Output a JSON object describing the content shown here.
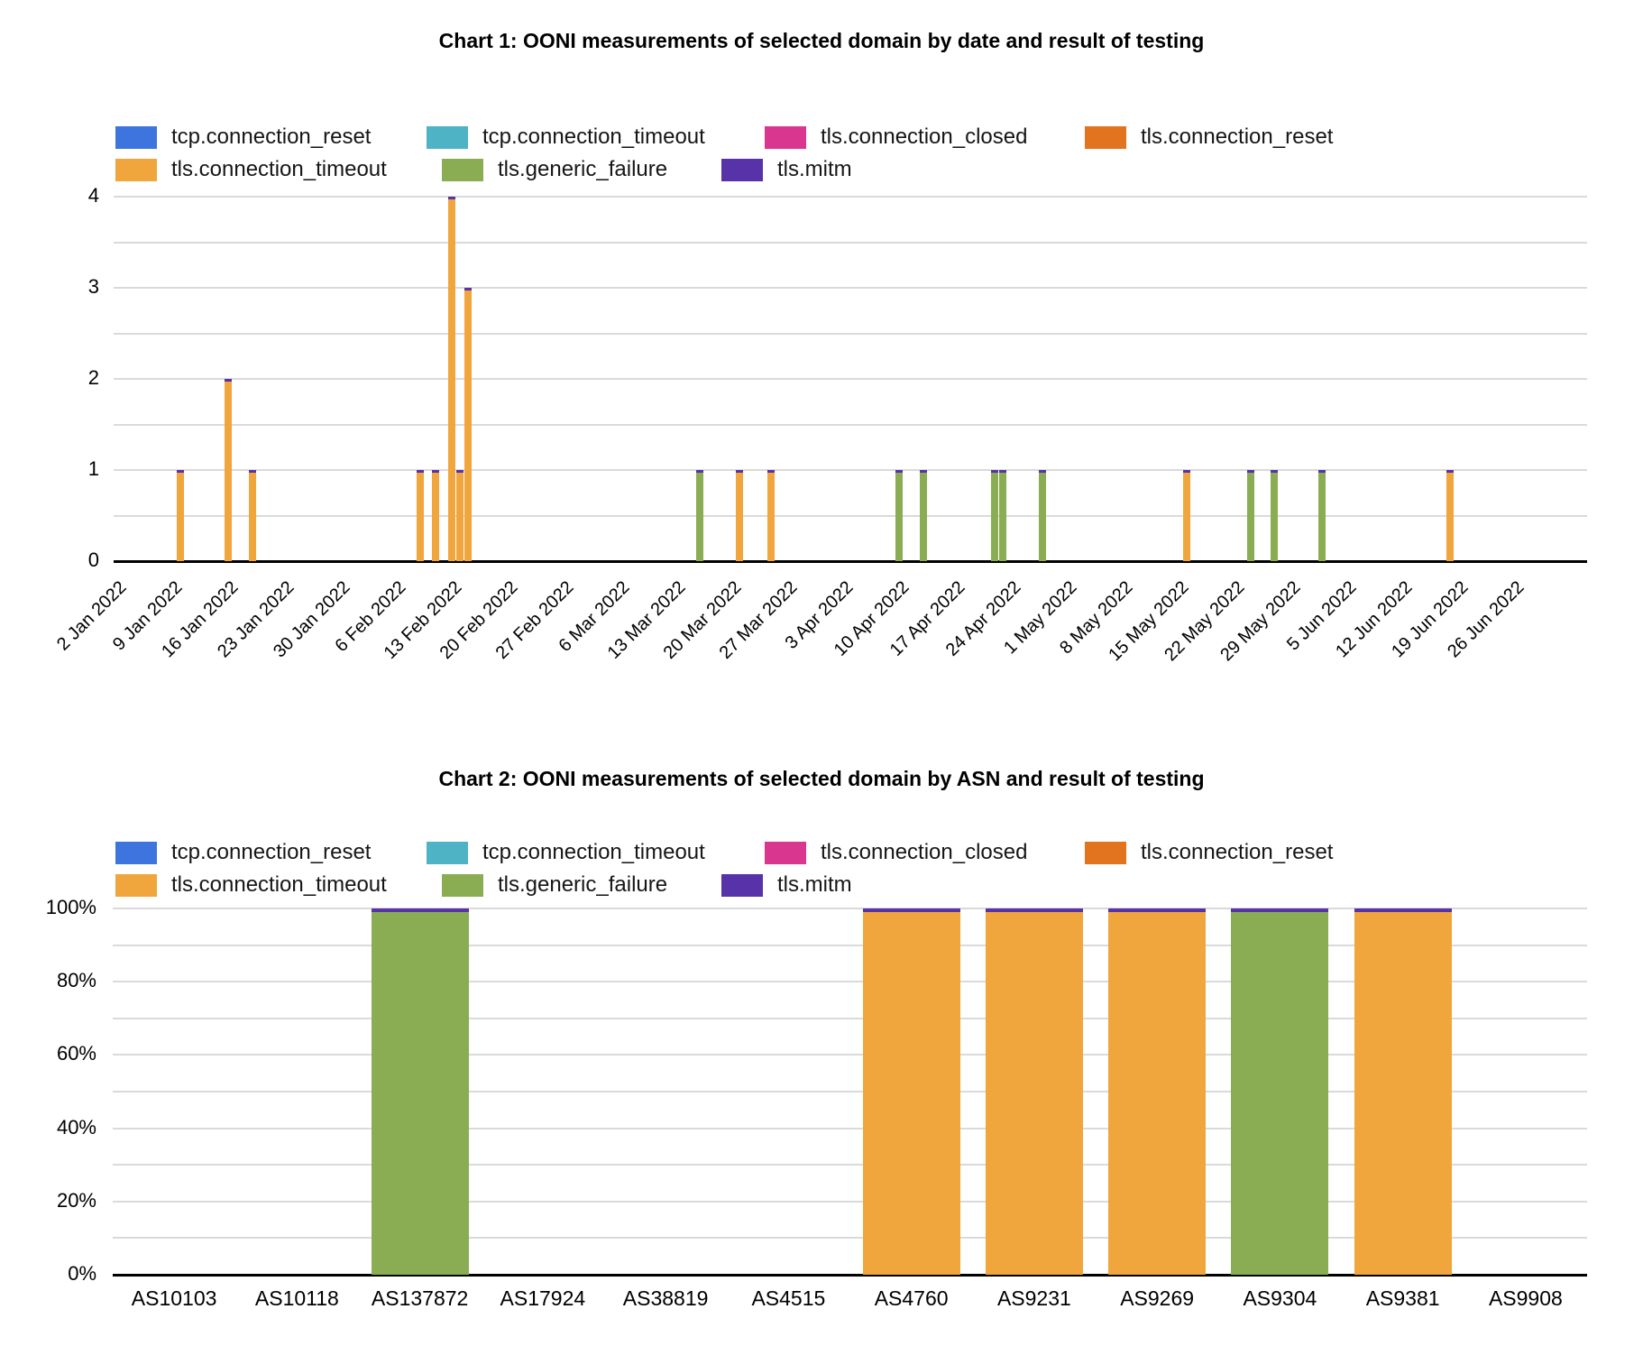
{
  "page": {
    "background": "#ffffff"
  },
  "series_colors": {
    "tcp.connection_reset": "#3d74de",
    "tcp.connection_timeout": "#4eb3c4",
    "tls.connection_closed": "#d9368f",
    "tls.connection_reset": "#e2731f",
    "tls.connection_timeout": "#f0a63c",
    "tls.generic_failure": "#8aad53",
    "tls.mitm": "#5732a8"
  },
  "legend": {
    "rows": [
      [
        "tcp.connection_reset",
        "tcp.connection_timeout",
        "tls.connection_closed",
        "tls.connection_reset"
      ],
      [
        "tls.connection_timeout",
        "tls.generic_failure",
        "tls.mitm"
      ]
    ]
  },
  "chart_data": [
    {
      "type": "bar",
      "title": "Chart 1: OONI measurements of selected domain by date and result of testing",
      "stacked": true,
      "grid": true,
      "legend_position": "top",
      "xlabel": "",
      "ylabel": "",
      "ylim": [
        0,
        4
      ],
      "y_tick_labels": [
        "0",
        "1",
        "2",
        "3",
        "4"
      ],
      "x_axis_type": "date-weekly",
      "x_tick_labels": [
        "2 Jan 2022",
        "9 Jan 2022",
        "16 Jan 2022",
        "23 Jan 2022",
        "30 Jan 2022",
        "6 Feb 2022",
        "13 Feb 2022",
        "20 Feb 2022",
        "27 Feb 2022",
        "6 Mar 2022",
        "13 Mar 2022",
        "20 Mar 2022",
        "27 Mar 2022",
        "3 Apr 2022",
        "10 Apr 2022",
        "17 Apr 2022",
        "24 Apr 2022",
        "1 May 2022",
        "8 May 2022",
        "15 May 2022",
        "22 May 2022",
        "29 May 2022",
        "5 Jun 2022",
        "12 Jun 2022",
        "19 Jun 2022",
        "26 Jun 2022"
      ],
      "series_names": [
        "tcp.connection_reset",
        "tcp.connection_timeout",
        "tls.connection_closed",
        "tls.connection_reset",
        "tls.connection_timeout",
        "tls.generic_failure",
        "tls.mitm"
      ],
      "top_cap_series": "tls.mitm",
      "bars": [
        {
          "date": "10 Jan 2022",
          "day_offset": 8,
          "series": "tls.connection_timeout",
          "value": 1
        },
        {
          "date": "16 Jan 2022",
          "day_offset": 14,
          "series": "tls.connection_timeout",
          "value": 2
        },
        {
          "date": "19 Jan 2022",
          "day_offset": 17,
          "series": "tls.connection_timeout",
          "value": 1
        },
        {
          "date": "9 Feb 2022",
          "day_offset": 38,
          "series": "tls.connection_timeout",
          "value": 1
        },
        {
          "date": "11 Feb 2022",
          "day_offset": 40,
          "series": "tls.connection_timeout",
          "value": 1
        },
        {
          "date": "13 Feb 2022",
          "day_offset": 42,
          "series": "tls.connection_timeout",
          "value": 4
        },
        {
          "date": "14 Feb 2022",
          "day_offset": 43,
          "series": "tls.connection_timeout",
          "value": 1
        },
        {
          "date": "15 Feb 2022",
          "day_offset": 44,
          "series": "tls.connection_timeout",
          "value": 3
        },
        {
          "date": "16 Mar 2022",
          "day_offset": 73,
          "series": "tls.generic_failure",
          "value": 1
        },
        {
          "date": "21 Mar 2022",
          "day_offset": 78,
          "series": "tls.connection_timeout",
          "value": 1
        },
        {
          "date": "25 Mar 2022",
          "day_offset": 82,
          "series": "tls.connection_timeout",
          "value": 1
        },
        {
          "date": "10 Apr 2022",
          "day_offset": 98,
          "series": "tls.generic_failure",
          "value": 1
        },
        {
          "date": "13 Apr 2022",
          "day_offset": 101,
          "series": "tls.generic_failure",
          "value": 1
        },
        {
          "date": "22 Apr 2022",
          "day_offset": 110,
          "series": "tls.generic_failure",
          "value": 1
        },
        {
          "date": "23 Apr 2022",
          "day_offset": 111,
          "series": "tls.generic_failure",
          "value": 1
        },
        {
          "date": "28 Apr 2022",
          "day_offset": 116,
          "series": "tls.generic_failure",
          "value": 1
        },
        {
          "date": "16 May 2022",
          "day_offset": 134,
          "series": "tls.connection_timeout",
          "value": 1
        },
        {
          "date": "24 May 2022",
          "day_offset": 142,
          "series": "tls.generic_failure",
          "value": 1
        },
        {
          "date": "27 May 2022",
          "day_offset": 145,
          "series": "tls.generic_failure",
          "value": 1
        },
        {
          "date": "2 Jun 2022",
          "day_offset": 151,
          "series": "tls.generic_failure",
          "value": 1
        },
        {
          "date": "18 Jun 2022",
          "day_offset": 167,
          "series": "tls.connection_timeout",
          "value": 1
        }
      ]
    },
    {
      "type": "stacked_bar_100",
      "title": "Chart 2: OONI measurements of selected domain by ASN and result of testing",
      "grid": true,
      "legend_position": "top",
      "ylim": [
        0,
        100
      ],
      "y_tick_labels": [
        "0%",
        "20%",
        "40%",
        "60%",
        "80%",
        "100%"
      ],
      "categories": [
        "AS10103",
        "AS10118",
        "AS137872",
        "AS17924",
        "AS38819",
        "AS4515",
        "AS4760",
        "AS9231",
        "AS9269",
        "AS9304",
        "AS9381",
        "AS9908"
      ],
      "top_cap_series": "tls.mitm",
      "bars": [
        {
          "category": "AS10103",
          "series": null,
          "value": 0
        },
        {
          "category": "AS10118",
          "series": null,
          "value": 0
        },
        {
          "category": "AS137872",
          "series": "tls.generic_failure",
          "value": 100
        },
        {
          "category": "AS17924",
          "series": null,
          "value": 0
        },
        {
          "category": "AS38819",
          "series": null,
          "value": 0
        },
        {
          "category": "AS4515",
          "series": null,
          "value": 0
        },
        {
          "category": "AS4760",
          "series": "tls.connection_timeout",
          "value": 100
        },
        {
          "category": "AS9231",
          "series": "tls.connection_timeout",
          "value": 100
        },
        {
          "category": "AS9269",
          "series": "tls.connection_timeout",
          "value": 100
        },
        {
          "category": "AS9304",
          "series": "tls.generic_failure",
          "value": 100
        },
        {
          "category": "AS9381",
          "series": "tls.connection_timeout",
          "value": 100
        },
        {
          "category": "AS9908",
          "series": null,
          "value": 0
        }
      ]
    }
  ]
}
